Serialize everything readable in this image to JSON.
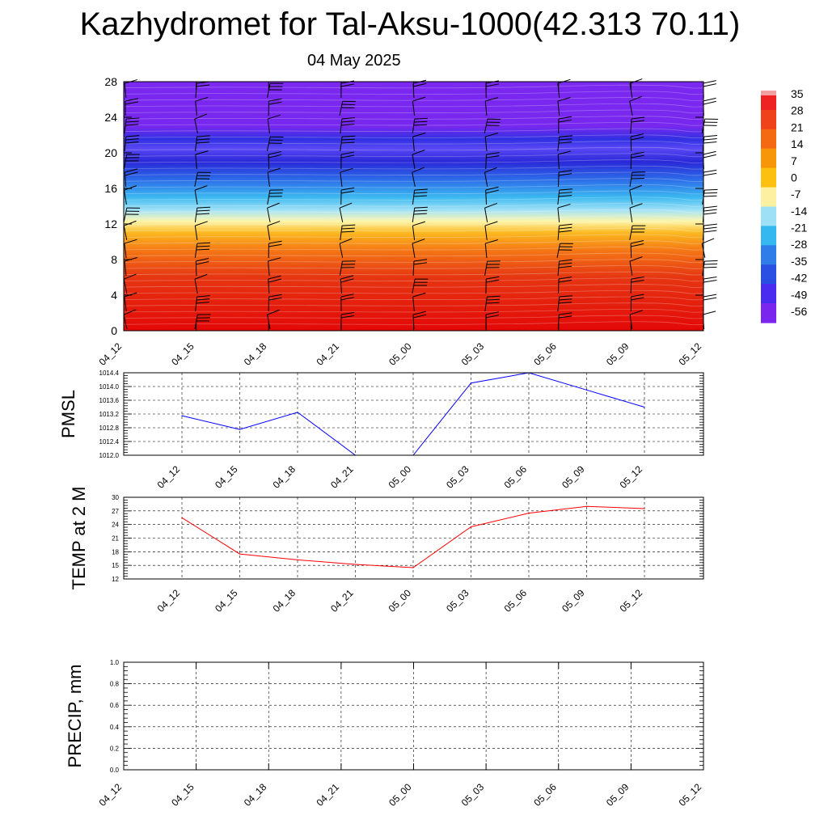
{
  "header": {
    "title": "Kazhydromet for Tal-Aksu-1000(42.313 70.11)",
    "date": "04 May 2025"
  },
  "chart_data": [
    {
      "type": "heatmap",
      "title": "",
      "x_ticks": [
        "04_12",
        "04_15",
        "04_18",
        "04_21",
        "05_00",
        "05_03",
        "05_06",
        "05_09",
        "05_12"
      ],
      "y_ticks": [
        0,
        4,
        8,
        12,
        16,
        20,
        24,
        28
      ],
      "ylim": [
        0,
        28
      ],
      "colorbar_labels": [
        "35",
        "28",
        "21",
        "14",
        "7",
        "0",
        "-7",
        "-14",
        "-21",
        "-28",
        "-35",
        "-42",
        "-49",
        "-56"
      ],
      "colorbar_colors": [
        "#ee2222",
        "#f0421a",
        "#f46a12",
        "#f8960a",
        "#fcc010",
        "#fdf0a0",
        "#9ee0f6",
        "#35b7f0",
        "#2f7de8",
        "#2a4fe3",
        "#4a2cf0",
        "#7b26ee"
      ],
      "vertical_bands": [
        {
          "level": 0,
          "color": "#e30808"
        },
        {
          "level": 6,
          "color": "#e63612"
        },
        {
          "level": 9,
          "color": "#f47615"
        },
        {
          "level": 11,
          "color": "#fbb820"
        },
        {
          "level": 12.3,
          "color": "#fdf6ab"
        },
        {
          "level": 13.5,
          "color": "#a8e4f6"
        },
        {
          "level": 15,
          "color": "#3bb9f0"
        },
        {
          "level": 17,
          "color": "#2c6ce8"
        },
        {
          "level": 19,
          "color": "#2a28d8"
        },
        {
          "level": 20.5,
          "color": "#5a48f4"
        },
        {
          "level": 21.5,
          "color": "#3030e2"
        },
        {
          "level": 23,
          "color": "#7828ee"
        },
        {
          "level": 28,
          "color": "#7b28f0"
        }
      ],
      "wind_barb_levels": [
        1,
        3,
        5,
        7,
        9,
        11,
        13,
        15,
        17,
        19,
        21,
        23,
        25,
        27
      ]
    },
    {
      "type": "line",
      "ylabel": "PMSL",
      "ylim": [
        1012.0,
        1014.4
      ],
      "y_ticks": [
        "1012.0",
        "1012.4",
        "1012.8",
        "1013.2",
        "1013.6",
        "1014.0",
        "1014.4"
      ],
      "categories": [
        "04_12",
        "04_15",
        "04_18",
        "04_21",
        "05_00",
        "05_03",
        "05_06",
        "05_09",
        "05_12"
      ],
      "series": [
        {
          "values": [
            1013.15,
            1012.75,
            1013.25,
            1012.0,
            1012.0,
            1014.1,
            1014.4,
            1013.9,
            1013.4
          ],
          "color": "#0000ff"
        }
      ]
    },
    {
      "type": "line",
      "ylabel": "TEMP at 2 M",
      "ylim": [
        12,
        30
      ],
      "y_ticks": [
        "12",
        "15",
        "18",
        "21",
        "24",
        "27",
        "30"
      ],
      "categories": [
        "04_12",
        "04_15",
        "04_18",
        "04_21",
        "05_00",
        "05_03",
        "05_06",
        "05_09",
        "05_12"
      ],
      "series": [
        {
          "values": [
            25.5,
            17.5,
            16.2,
            15.2,
            14.5,
            23.5,
            26.5,
            28.0,
            27.5
          ],
          "color": "#ff0000"
        }
      ]
    },
    {
      "type": "line",
      "ylabel": "PRECIP, mm",
      "ylim": [
        0.0,
        1.0
      ],
      "y_ticks": [
        "0.0",
        "0.2",
        "0.4",
        "0.6",
        "0.8",
        "1.0"
      ],
      "x_ticks": [
        "04_12",
        "04_15",
        "04_18",
        "04_21",
        "05_00",
        "05_03",
        "05_06",
        "05_09",
        "05_12"
      ],
      "series": [
        {
          "values": [
            0,
            0,
            0,
            0,
            0,
            0,
            0,
            0,
            0
          ],
          "color": "#006400"
        }
      ]
    }
  ]
}
